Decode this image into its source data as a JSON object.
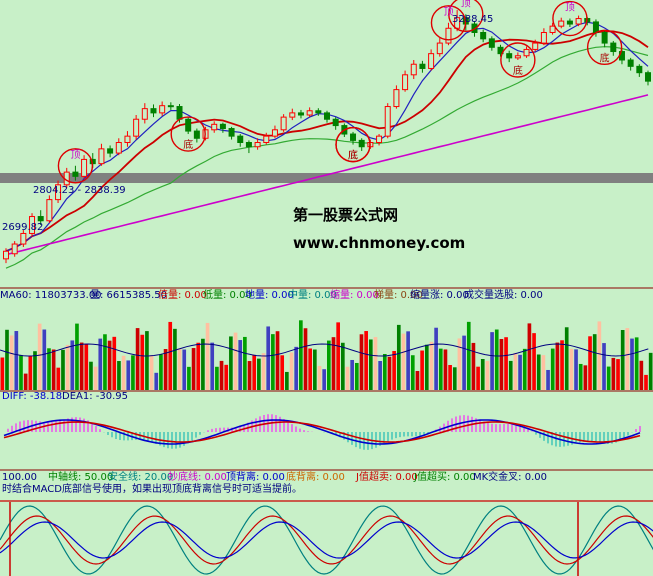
{
  "chart_data": [
    {
      "type": "candlestick",
      "panel": "price",
      "price_range": [
        2650,
        3300
      ],
      "price_labels": {
        "high": "3288.45",
        "range": "2804.23 - 2838.39",
        "low": "2699.82"
      },
      "candles": [
        [
          2700,
          2718,
          2690,
          2725
        ],
        [
          2712,
          2735,
          2705,
          2742
        ],
        [
          2735,
          2760,
          2728,
          2768
        ],
        [
          2760,
          2800,
          2752,
          2808
        ],
        [
          2800,
          2790,
          2780,
          2815
        ],
        [
          2790,
          2840,
          2785,
          2850
        ],
        [
          2840,
          2875,
          2832,
          2885
        ],
        [
          2875,
          2905,
          2868,
          2915
        ],
        [
          2905,
          2895,
          2885,
          2920
        ],
        [
          2895,
          2935,
          2890,
          2945
        ],
        [
          2935,
          2925,
          2915,
          2950
        ],
        [
          2925,
          2960,
          2920,
          2972
        ],
        [
          2960,
          2950,
          2940,
          2968
        ],
        [
          2950,
          2975,
          2945,
          2985
        ],
        [
          2975,
          2990,
          2965,
          3002
        ],
        [
          2990,
          3030,
          2982,
          3040
        ],
        [
          3030,
          3055,
          3020,
          3068
        ],
        [
          3055,
          3045,
          3035,
          3065
        ],
        [
          3045,
          3062,
          3038,
          3072
        ],
        [
          3062,
          3060,
          3052,
          3070
        ],
        [
          3060,
          3030,
          3022,
          3066
        ],
        [
          3030,
          3002,
          2995,
          3036
        ],
        [
          3002,
          2985,
          2975,
          3008
        ],
        [
          2985,
          3005,
          2980,
          3012
        ],
        [
          3005,
          3018,
          2998,
          3025
        ],
        [
          3018,
          3008,
          2998,
          3022
        ],
        [
          3008,
          2990,
          2982,
          3012
        ],
        [
          2990,
          2975,
          2965,
          2995
        ],
        [
          2975,
          2965,
          2950,
          2980
        ],
        [
          2965,
          2975,
          2958,
          2985
        ],
        [
          2975,
          2990,
          2970,
          2998
        ],
        [
          2990,
          3005,
          2985,
          3015
        ],
        [
          3005,
          3035,
          3000,
          3042
        ],
        [
          3035,
          3045,
          3028,
          3055
        ],
        [
          3045,
          3040,
          3032,
          3052
        ],
        [
          3040,
          3050,
          3035,
          3058
        ],
        [
          3050,
          3045,
          3038,
          3056
        ],
        [
          3045,
          3030,
          3022,
          3050
        ],
        [
          3030,
          3015,
          3005,
          3035
        ],
        [
          3015,
          2995,
          2988,
          3020
        ],
        [
          2995,
          2980,
          2970,
          3000
        ],
        [
          2980,
          2965,
          2955,
          2985
        ],
        [
          2965,
          2975,
          2960,
          2982
        ],
        [
          2975,
          2990,
          2968,
          2995
        ],
        [
          2990,
          3060,
          2985,
          3068
        ],
        [
          3060,
          3100,
          3055,
          3110
        ],
        [
          3100,
          3135,
          3095,
          3145
        ],
        [
          3135,
          3160,
          3125,
          3170
        ],
        [
          3160,
          3150,
          3140,
          3168
        ],
        [
          3150,
          3185,
          3145,
          3195
        ],
        [
          3185,
          3210,
          3178,
          3222
        ],
        [
          3210,
          3245,
          3205,
          3258
        ],
        [
          3245,
          3270,
          3238,
          3288
        ],
        [
          3270,
          3255,
          3240,
          3278
        ],
        [
          3255,
          3235,
          3225,
          3262
        ],
        [
          3235,
          3220,
          3212,
          3242
        ],
        [
          3220,
          3200,
          3192,
          3226
        ],
        [
          3200,
          3185,
          3178,
          3206
        ],
        [
          3185,
          3175,
          3165,
          3192
        ],
        [
          3175,
          3180,
          3170,
          3188
        ],
        [
          3180,
          3195,
          3175,
          3202
        ],
        [
          3195,
          3210,
          3190,
          3218
        ],
        [
          3210,
          3235,
          3205,
          3245
        ],
        [
          3235,
          3250,
          3230,
          3258
        ],
        [
          3250,
          3262,
          3245,
          3270
        ],
        [
          3262,
          3255,
          3248,
          3268
        ],
        [
          3255,
          3268,
          3250,
          3275
        ],
        [
          3268,
          3260,
          3252,
          3272
        ],
        [
          3260,
          3235,
          3225,
          3266
        ],
        [
          3235,
          3210,
          3200,
          3240
        ],
        [
          3210,
          3190,
          3180,
          3215
        ],
        [
          3190,
          3170,
          3160,
          3195
        ],
        [
          3170,
          3155,
          3145,
          3175
        ],
        [
          3155,
          3140,
          3130,
          3160
        ],
        [
          3140,
          3120,
          3110,
          3145
        ]
      ],
      "annotations": [
        {
          "text": "顶",
          "candle": 8
        },
        {
          "text": "底",
          "candle": 21
        },
        {
          "text": "底",
          "candle": 40
        },
        {
          "text": "底",
          "candle": 40
        },
        {
          "text": "顶",
          "candle": 51
        },
        {
          "text": "顶",
          "candle": 53
        },
        {
          "text": "底",
          "candle": 59
        },
        {
          "text": "顶",
          "candle": 65
        },
        {
          "text": "底",
          "candle": 69
        }
      ]
    },
    {
      "type": "bar",
      "panel": "volume",
      "legend": [
        "MA60: 11803733.00",
        "量: 6615385.50",
        "倍量: 0.00",
        "低量: 0.00",
        "地量: 0.00",
        "中量: 0.00",
        "缩量: 0.00",
        "梯量: 0.00",
        "缩量涨: 0.00",
        "成交量选股: 0.00"
      ]
    },
    {
      "type": "bar",
      "panel": "macd",
      "legend": [
        "DIFF: -38.18",
        "DEA1: -30.95"
      ]
    },
    {
      "type": "line",
      "panel": "kdj",
      "legend": [
        "100.00",
        "中轴线: 50.00",
        "安全线: 20.00",
        "抄底线: 0.00",
        "顶背离: 0.00",
        "底背离: 0.00",
        "J值超卖: 0.00",
        "J值超买: 0.00",
        "MK交金叉: 0.00"
      ],
      "note": "时结合MACD底部信号使用，如果出现顶底背离信号时可适当提前。"
    }
  ],
  "watermark": {
    "line1": "第一股票公式网",
    "line2": "www.chnmoney.com"
  },
  "colors": {
    "background": "#c8f0c8",
    "up": "#ff0000",
    "down": "#008000",
    "ma_short": "#2020c0",
    "ma_mid": "#cc0000",
    "ma_long": "#33aa33",
    "ma_xlong": "#cc00cc",
    "divider": "#8b0000"
  }
}
